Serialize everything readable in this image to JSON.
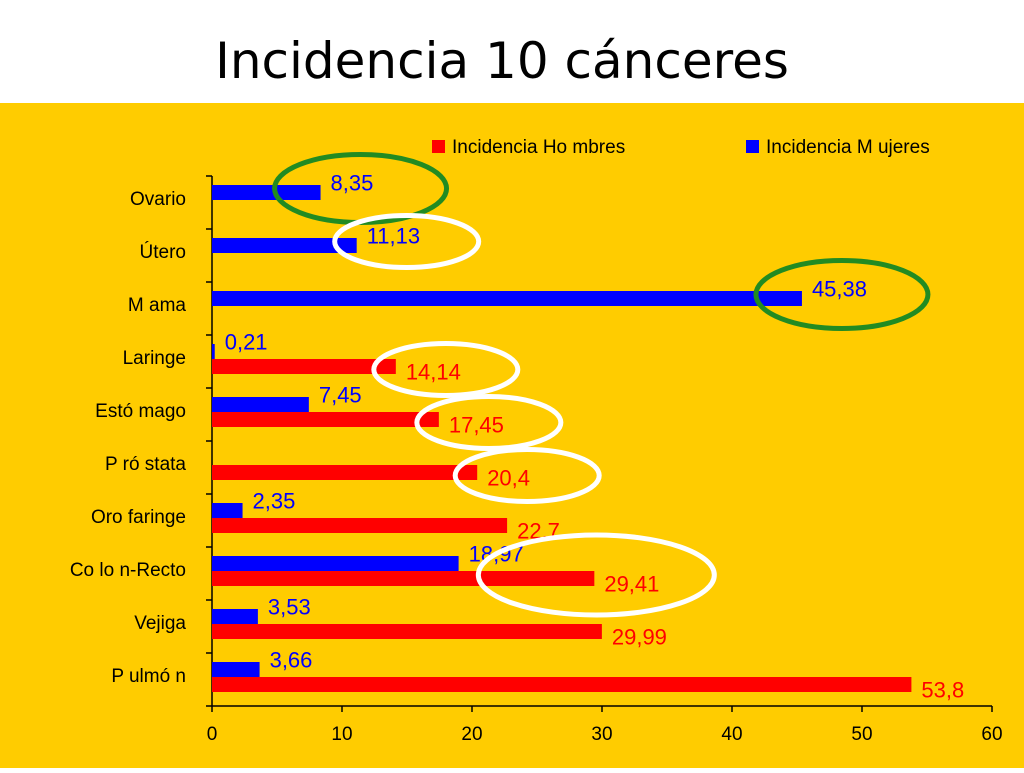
{
  "slide": {
    "title": "Incidencia 10 cánceres"
  },
  "chart_data": {
    "type": "bar",
    "orientation": "horizontal",
    "categories": [
      "Ovario",
      "Útero",
      "M ama",
      "Laringe",
      "Estó mago",
      "P ró stata",
      "Oro faringe",
      "Co lo n-Recto",
      "Vejiga",
      "P ulmó n"
    ],
    "series": [
      {
        "name": "Incidencia Ho mbres",
        "color": "#ff0000",
        "values": [
          null,
          null,
          null,
          14.14,
          17.45,
          20.4,
          22.7,
          29.41,
          29.99,
          53.8
        ],
        "labels": [
          null,
          null,
          null,
          "14,14",
          "17,45",
          "20,4",
          "22.7",
          "29,41",
          "29,99",
          "53,8"
        ]
      },
      {
        "name": "Incidencia M ujeres",
        "color": "#0000ff",
        "values": [
          8.35,
          11.13,
          45.38,
          0.21,
          7.45,
          null,
          2.35,
          18.97,
          3.53,
          3.66
        ],
        "labels": [
          "8,35",
          "11,13",
          "45,38",
          "0,21",
          "7,45",
          null,
          "2,35",
          "18,97",
          "3,53",
          "3,66"
        ]
      }
    ],
    "xlim": [
      0,
      60
    ],
    "xticks": [
      "0",
      "10",
      "20",
      "30",
      "40",
      "50",
      "60"
    ],
    "legend_position": "top",
    "grid": false,
    "background_color": "#ffcc00",
    "highlights": [
      {
        "category": "Ovario",
        "series": "Incidencia M ujeres",
        "color": "#228b22"
      },
      {
        "category": "M ama",
        "series": "Incidencia M ujeres",
        "color": "#228b22"
      },
      {
        "category": "Útero",
        "series": "Incidencia M ujeres",
        "color": "#ffffff"
      },
      {
        "category": "Laringe",
        "series": "Incidencia Ho mbres",
        "color": "#ffffff"
      },
      {
        "category": "Estó mago",
        "series": "Incidencia Ho mbres",
        "color": "#ffffff"
      },
      {
        "category": "P ró stata",
        "series": "Incidencia Ho mbres",
        "color": "#ffffff"
      },
      {
        "category": "Co lo n-Recto",
        "series": "both",
        "color": "#ffffff"
      }
    ]
  }
}
